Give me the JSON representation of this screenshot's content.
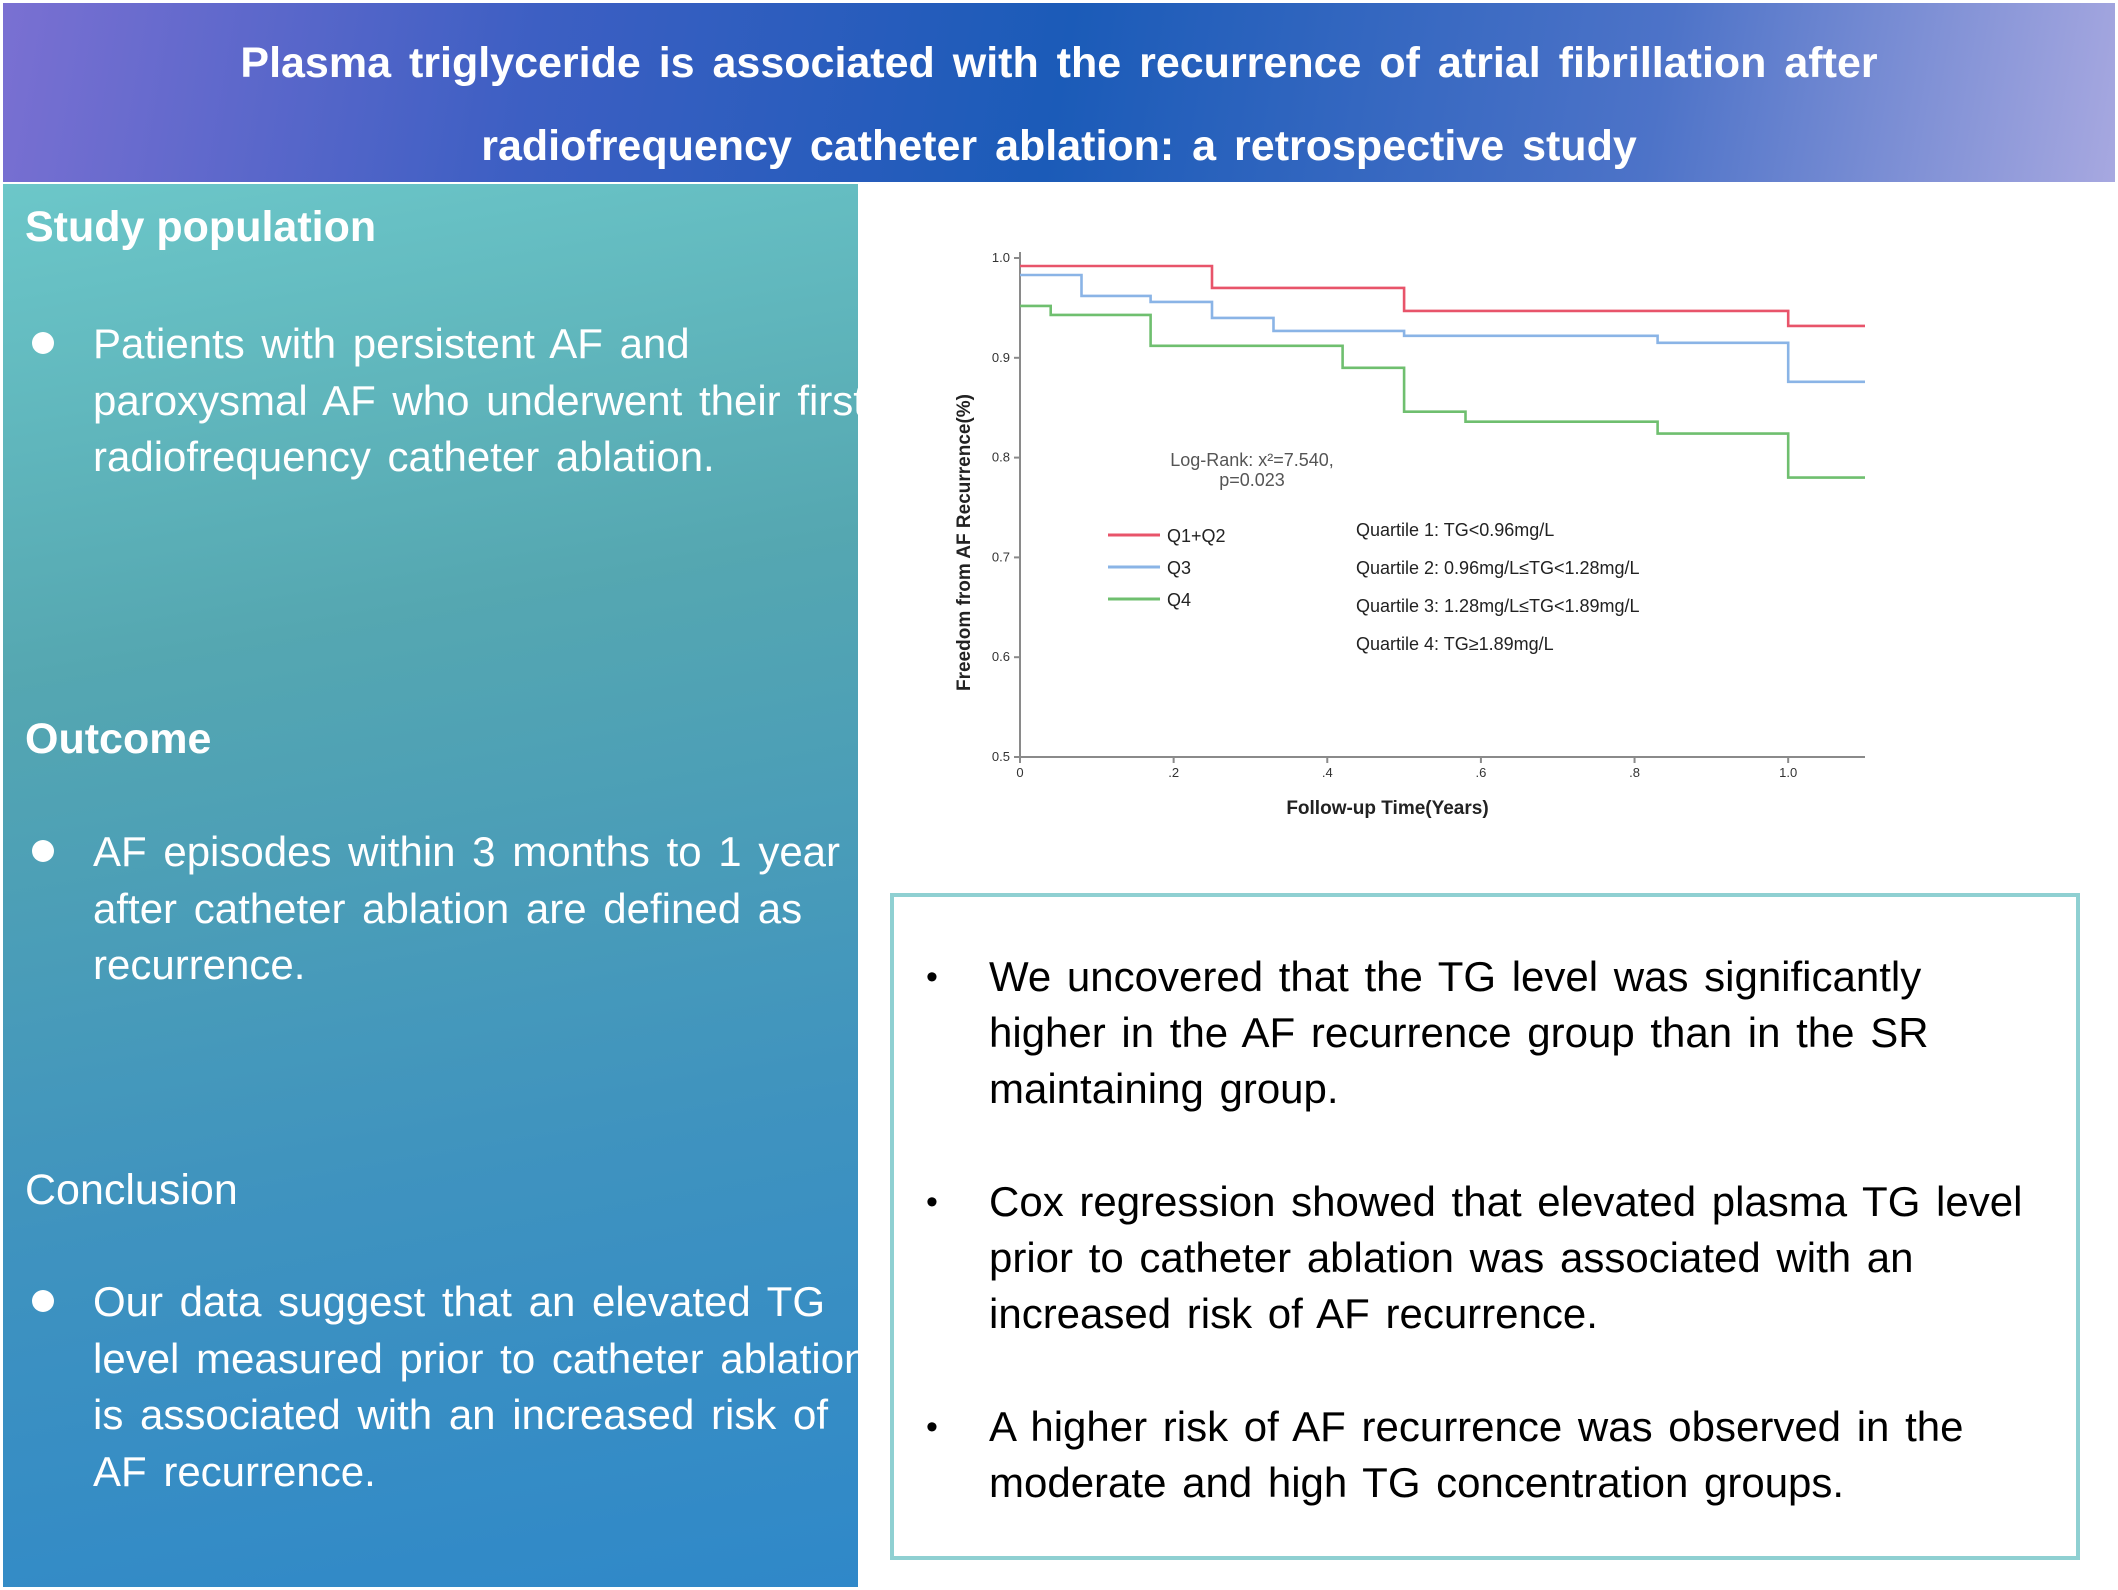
{
  "header": {
    "title_line1": "Plasma triglyceride is associated with the recurrence of atrial fibrillation after",
    "title_line2": "radiofrequency catheter ablation: a retrospective study"
  },
  "left_panel": {
    "study_population": {
      "title": "Study population",
      "bullet": "Patients with persistent AF and paroxysmal AF who underwent their first radiofrequency catheter ablation."
    },
    "outcome": {
      "title": "Outcome",
      "bullet": "AF episodes within 3 months to 1 year after catheter ablation are defined as recurrence."
    },
    "conclusion": {
      "title": "Conclusion",
      "bullet": "Our data suggest that an elevated TG level measured prior to catheter ablation is associated with an increased risk of AF recurrence."
    }
  },
  "findings": [
    {
      "bullet": "•",
      "text": "We uncovered that the TG level was significantly higher in the AF recurrence group than in the SR maintaining group."
    },
    {
      "bullet": "•",
      "text": "Cox regression showed that elevated plasma TG level prior to catheter ablation was associated with an increased risk of AF recurrence."
    },
    {
      "bullet": "•",
      "text": "A higher risk of AF recurrence was observed in the moderate and high TG concentration groups."
    }
  ],
  "chart_data": {
    "type": "line",
    "step": true,
    "xlabel": "Follow-up Time(Years)",
    "ylabel": "Freedom from AF Recurrence(%)",
    "xlim": [
      0,
      1.1
    ],
    "ylim": [
      0.5,
      1.0
    ],
    "x_ticks": [
      0,
      0.2,
      0.4,
      0.6,
      0.8,
      1.0
    ],
    "x_tick_labels": [
      "0",
      ".2",
      ".4",
      ".6",
      ".8",
      "1.0"
    ],
    "y_ticks": [
      0.5,
      0.6,
      0.7,
      0.8,
      0.9,
      1.0
    ],
    "y_tick_labels": [
      "0.5",
      "0.6",
      "0.7",
      "0.8",
      "0.9",
      "1.0"
    ],
    "grid": false,
    "annotation": [
      "Log-Rank: x²=7.540,",
      "p=0.023"
    ],
    "legend_position": "center-left",
    "quartile_definitions": [
      "Quartile 1: TG<0.96mg/L",
      "Quartile 2: 0.96mg/L≤TG<1.28mg/L",
      "Quartile 3: 1.28mg/L≤TG<1.89mg/L",
      "Quartile 4: TG≥1.89mg/L"
    ],
    "series": [
      {
        "name": "Q1+Q2",
        "color": "#e8546a",
        "points": [
          [
            0,
            0.992
          ],
          [
            0.25,
            0.992
          ],
          [
            0.25,
            0.97
          ],
          [
            0.5,
            0.97
          ],
          [
            0.5,
            0.947
          ],
          [
            1.0,
            0.947
          ],
          [
            1.0,
            0.932
          ],
          [
            1.1,
            0.932
          ]
        ]
      },
      {
        "name": "Q3",
        "color": "#8ab4e6",
        "points": [
          [
            0,
            0.983
          ],
          [
            0.08,
            0.983
          ],
          [
            0.08,
            0.962
          ],
          [
            0.17,
            0.962
          ],
          [
            0.17,
            0.956
          ],
          [
            0.25,
            0.956
          ],
          [
            0.25,
            0.94
          ],
          [
            0.33,
            0.94
          ],
          [
            0.33,
            0.927
          ],
          [
            0.5,
            0.927
          ],
          [
            0.5,
            0.922
          ],
          [
            0.83,
            0.922
          ],
          [
            0.83,
            0.915
          ],
          [
            1.0,
            0.915
          ],
          [
            1.0,
            0.876
          ],
          [
            1.1,
            0.876
          ]
        ]
      },
      {
        "name": "Q4",
        "color": "#6fbf6f",
        "points": [
          [
            0,
            0.952
          ],
          [
            0.04,
            0.952
          ],
          [
            0.04,
            0.943
          ],
          [
            0.17,
            0.943
          ],
          [
            0.17,
            0.912
          ],
          [
            0.42,
            0.912
          ],
          [
            0.42,
            0.89
          ],
          [
            0.5,
            0.89
          ],
          [
            0.5,
            0.846
          ],
          [
            0.58,
            0.846
          ],
          [
            0.58,
            0.836
          ],
          [
            0.83,
            0.836
          ],
          [
            0.83,
            0.824
          ],
          [
            1.0,
            0.824
          ],
          [
            1.0,
            0.78
          ],
          [
            1.1,
            0.78
          ]
        ]
      }
    ]
  }
}
